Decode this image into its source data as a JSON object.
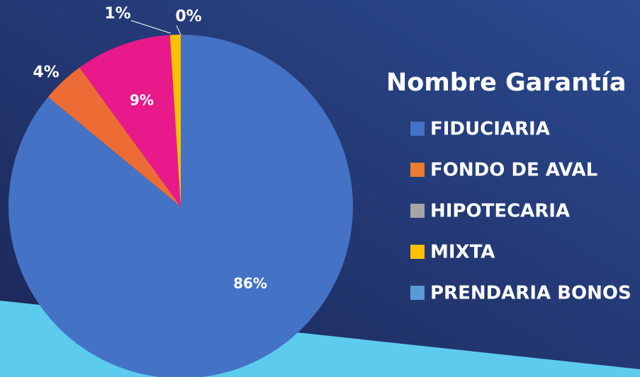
{
  "chart_data": {
    "type": "pie",
    "legend_title": "Nombre Garantía",
    "categories": [
      "FIDUCIARIA",
      "FONDO DE AVAL",
      "HIPOTECARIA",
      "MIXTA",
      "PRENDARIA BONOS"
    ],
    "values": [
      86,
      4,
      9,
      1,
      0
    ],
    "value_labels": [
      "86%",
      "4%",
      "9%",
      "1%",
      "0%"
    ],
    "colors": [
      "#4472c4",
      "#ed6c35",
      "#e8198b",
      "#ffc000",
      "#5b9bd5"
    ],
    "legend_colors": [
      "#4472c4",
      "#ed7d31",
      "#a5a5a5",
      "#ffc000",
      "#5b9bd5"
    ],
    "legend": "right"
  }
}
